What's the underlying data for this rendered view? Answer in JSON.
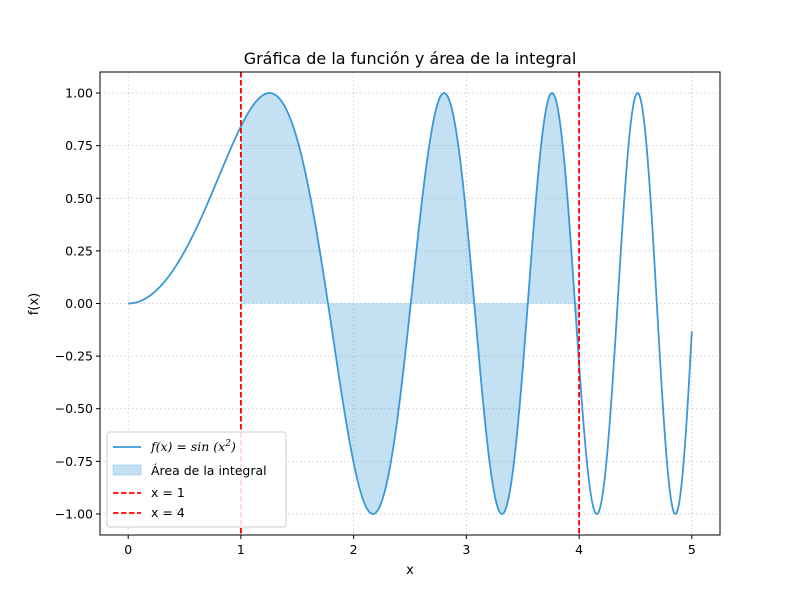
{
  "chart_data": {
    "type": "line",
    "title": "Gráfica de la función y área de la integral",
    "xlabel": "x",
    "ylabel": "f(x)",
    "xlim": [
      -0.25,
      5.25
    ],
    "ylim": [
      -1.1,
      1.1
    ],
    "xticks": [
      0,
      1,
      2,
      3,
      4,
      5
    ],
    "xtick_labels": [
      "0",
      "1",
      "2",
      "3",
      "4",
      "5"
    ],
    "yticks": [
      -1.0,
      -0.75,
      -0.5,
      -0.25,
      0.0,
      0.25,
      0.5,
      0.75,
      1.0
    ],
    "ytick_labels": [
      "−1.00",
      "−0.75",
      "−0.50",
      "−0.25",
      "0.00",
      "0.25",
      "0.50",
      "0.75",
      "1.00"
    ],
    "grid": true,
    "legend_position": "lower-left",
    "function": "sin(x^2)",
    "x_domain": [
      0,
      5
    ],
    "series": [
      {
        "name": "f(x) = sin(x²)",
        "kind": "line",
        "color": "#3a98d8",
        "expression": "sin(x^2)"
      },
      {
        "name": "Área de la integral",
        "kind": "fill",
        "color": "#3a98d8",
        "x_range": [
          1,
          4
        ]
      },
      {
        "name": "x = 1",
        "kind": "vline",
        "color": "#ff0000",
        "x": 1
      },
      {
        "name": "x = 4",
        "kind": "vline",
        "color": "#ff0000",
        "x": 4
      }
    ],
    "legend": {
      "line_label_prefix": "f(x) = sin (x",
      "line_label_exponent": "2",
      "line_label_suffix": ")",
      "fill_label": "Área de la integral",
      "vline1_label": "x = 1",
      "vline2_label": "x = 4"
    }
  }
}
